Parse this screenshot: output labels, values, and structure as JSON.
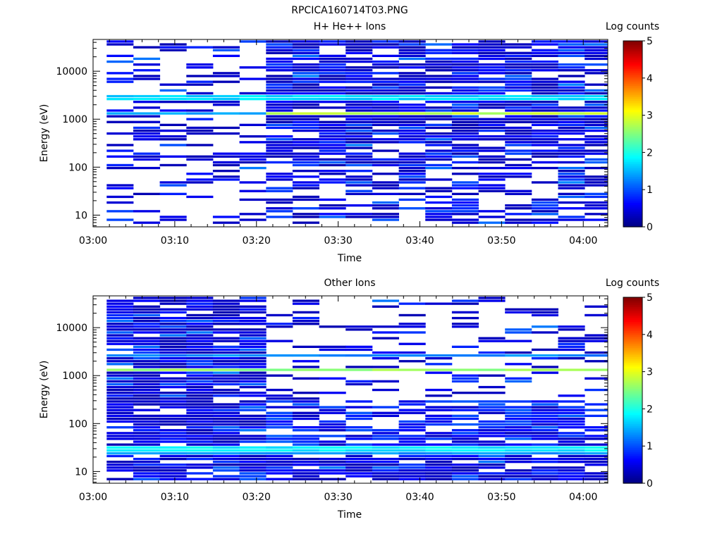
{
  "figure_title": "RPCICA160714T03.PNG",
  "chart_data": [
    {
      "type": "heatmap",
      "title": "H+ He++ Ions",
      "xlabel": "Time",
      "ylabel": "Energy (eV)",
      "x_ticks": [
        "03:00",
        "03:10",
        "03:20",
        "03:30",
        "03:40",
        "03:50",
        "04:00"
      ],
      "y_ticks": [
        "10",
        "100",
        "1000",
        "10000"
      ],
      "y_scale": "log",
      "ylim": [
        5.7,
        46000
      ],
      "xlim": [
        "03:00",
        "04:03"
      ],
      "colorbar": {
        "label": "Log counts",
        "ticks": [
          "0",
          "1",
          "2",
          "3",
          "4",
          "5"
        ],
        "range": [
          0,
          5
        ]
      },
      "time_columns": [
        "03:01:40",
        "03:04:55",
        "03:08:10",
        "03:11:25",
        "03:14:40",
        "03:17:55",
        "03:21:10",
        "03:24:25",
        "03:27:40",
        "03:30:55",
        "03:34:10",
        "03:37:25",
        "03:40:40",
        "03:43:55",
        "03:47:10",
        "03:50:25",
        "03:53:40",
        "03:56:55",
        "04:00:10"
      ],
      "bright_bands": [
        {
          "energy_ev": 2800,
          "log_counts": 1.7,
          "from": "03:01:40"
        },
        {
          "energy_ev": 1300,
          "log_counts": 2.8,
          "from": "03:21:10"
        },
        {
          "energy_ev": 1300,
          "log_counts": 1.5,
          "from": "03:01:40"
        }
      ],
      "transition_time": "03:21:10",
      "note_pattern": "sparse before 03:21, dense after 03:21"
    },
    {
      "type": "heatmap",
      "title": "Other Ions",
      "xlabel": "Time",
      "ylabel": "Energy (eV)",
      "x_ticks": [
        "03:00",
        "03:10",
        "03:20",
        "03:30",
        "03:40",
        "03:50",
        "04:00"
      ],
      "y_ticks": [
        "10",
        "100",
        "1000",
        "10000"
      ],
      "y_scale": "log",
      "ylim": [
        5.7,
        46000
      ],
      "xlim": [
        "03:00",
        "04:03"
      ],
      "colorbar": {
        "label": "Log counts",
        "ticks": [
          "0",
          "1",
          "2",
          "3",
          "4",
          "5"
        ],
        "range": [
          0,
          5
        ]
      },
      "time_columns": [
        "03:01:40",
        "03:04:55",
        "03:08:10",
        "03:11:25",
        "03:14:40",
        "03:17:55",
        "03:21:10",
        "03:24:25",
        "03:27:40",
        "03:30:55",
        "03:34:10",
        "03:37:25",
        "03:40:40",
        "03:43:55",
        "03:47:10",
        "03:50:25",
        "03:53:40",
        "03:56:55",
        "04:00:10"
      ],
      "bright_bands": [
        {
          "energy_ev": 1300,
          "log_counts": 2.6,
          "from": "03:01:40"
        },
        {
          "energy_ev": 2600,
          "log_counts": 1.3,
          "from": "03:01:40"
        },
        {
          "energy_ev": 30,
          "log_counts": 1.8,
          "from": "03:01:40"
        },
        {
          "energy_ev": 24,
          "log_counts": 1.4,
          "from": "03:01:40"
        }
      ],
      "transition_time": "03:21:10",
      "note_pattern": "dense before 03:21, sparse above 300 eV after 03:21"
    }
  ]
}
